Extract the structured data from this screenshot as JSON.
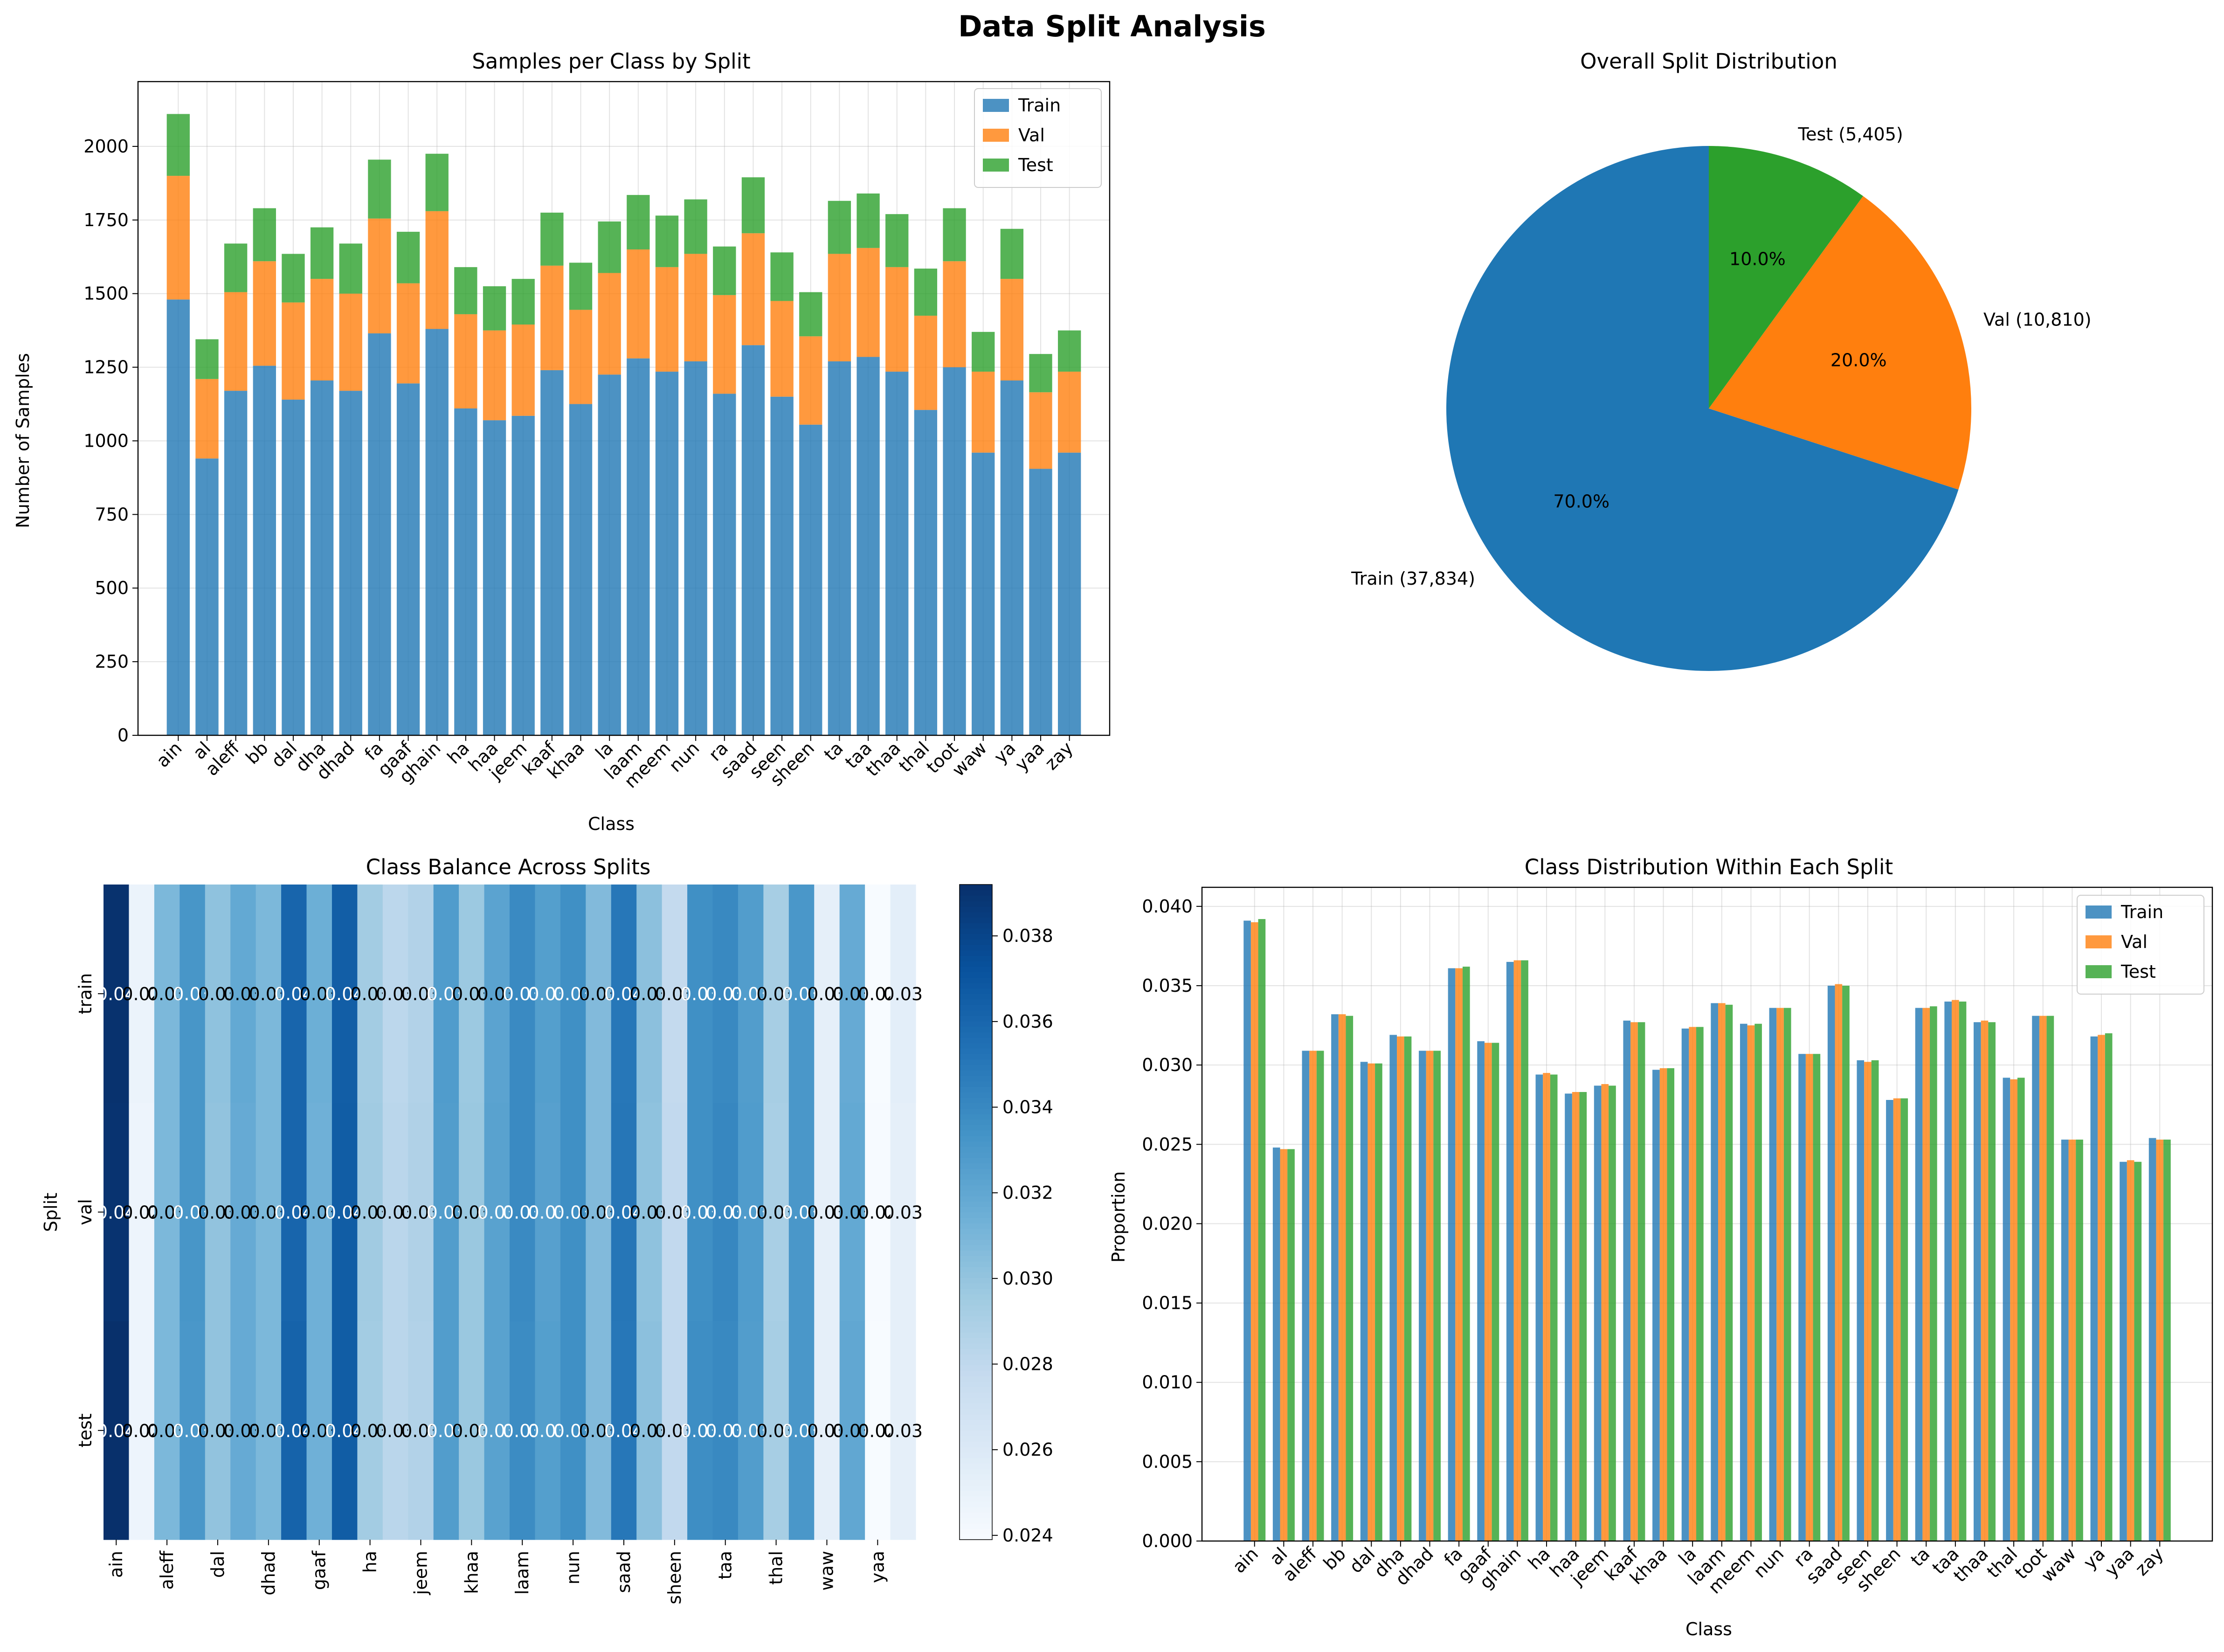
{
  "figure": {
    "suptitle": "Data Split Analysis"
  },
  "colors": {
    "train": "#1f77b4",
    "val": "#ff7f0e",
    "test": "#2ca02c",
    "grid": "#b0b0b0"
  },
  "classes": [
    "ain",
    "al",
    "aleff",
    "bb",
    "dal",
    "dha",
    "dhad",
    "fa",
    "gaaf",
    "ghain",
    "ha",
    "haa",
    "jeem",
    "kaaf",
    "khaa",
    "la",
    "laam",
    "meem",
    "nun",
    "ra",
    "saad",
    "seen",
    "sheen",
    "ta",
    "taa",
    "thaa",
    "thal",
    "toot",
    "waw",
    "ya",
    "yaa",
    "zay"
  ],
  "chart_data": [
    {
      "type": "bar",
      "stacked": true,
      "title": "Samples per Class by Split",
      "xlabel": "Class",
      "ylabel": "Number of Samples",
      "ylim": [
        0,
        2220
      ],
      "yticks": [
        0,
        250,
        500,
        750,
        1000,
        1250,
        1500,
        1750,
        2000
      ],
      "legend_position": "upper-right",
      "series": [
        {
          "name": "Train",
          "values": [
            1480,
            940,
            1170,
            1255,
            1140,
            1205,
            1170,
            1365,
            1195,
            1380,
            1110,
            1070,
            1085,
            1240,
            1125,
            1225,
            1280,
            1235,
            1270,
            1160,
            1325,
            1150,
            1055,
            1270,
            1285,
            1235,
            1105,
            1250,
            960,
            1205,
            905,
            960
          ]
        },
        {
          "name": "Val",
          "values": [
            420,
            270,
            335,
            355,
            330,
            345,
            330,
            390,
            340,
            400,
            320,
            305,
            310,
            355,
            320,
            345,
            370,
            355,
            365,
            335,
            380,
            325,
            300,
            365,
            370,
            355,
            320,
            360,
            275,
            345,
            260,
            275
          ]
        },
        {
          "name": "Test",
          "values": [
            210,
            135,
            165,
            180,
            165,
            175,
            170,
            200,
            175,
            195,
            160,
            150,
            155,
            180,
            160,
            175,
            185,
            175,
            185,
            165,
            190,
            165,
            150,
            180,
            185,
            180,
            160,
            180,
            135,
            170,
            130,
            140
          ]
        }
      ]
    },
    {
      "type": "pie",
      "title": "Overall Split Distribution",
      "slices": [
        {
          "name": "Train",
          "label": "Train (37,834)",
          "value": 37834,
          "pct_label": "70.0%"
        },
        {
          "name": "Val",
          "label": "Val (10,810)",
          "value": 10810,
          "pct_label": "20.0%"
        },
        {
          "name": "Test",
          "label": "Test (5,405)",
          "value": 5405,
          "pct_label": "10.0%"
        }
      ]
    },
    {
      "type": "heatmap",
      "title": "Class Balance Across Splits",
      "xlabel": "",
      "ylabel": "Split",
      "rows": [
        "train",
        "val",
        "test"
      ],
      "xtick_labels": [
        "ain",
        "aleff",
        "dal",
        "dhad",
        "gaaf",
        "ha",
        "jeem",
        "khaa",
        "laam",
        "nun",
        "saad",
        "sheen",
        "taa",
        "thal",
        "waw",
        "yaa"
      ],
      "colorbar_range": [
        0.0239,
        0.0392
      ],
      "colorbar_ticks": [
        0.024,
        0.026,
        0.028,
        0.03,
        0.032,
        0.034,
        0.036,
        0.038
      ],
      "cell_text": [
        "0.04",
        "0.02",
        "0.03",
        "0.03",
        "0.03",
        "0.03",
        "0.03",
        "0.04",
        "0.03",
        "0.04",
        "0.03",
        "0.03",
        "0.03",
        "0.03",
        "0.03",
        "0.03",
        "0.03",
        "0.03",
        "0.03",
        "0.03",
        "0.04",
        "0.03",
        "0.03",
        "0.03",
        "0.03",
        "0.03",
        "0.03",
        "0.03",
        "0.03",
        "0.03",
        "0.02",
        "0.03"
      ],
      "values": [
        [
          0.0391,
          0.0248,
          0.0309,
          0.0332,
          0.0302,
          0.0319,
          0.0309,
          0.0361,
          0.0315,
          0.0365,
          0.0294,
          0.0282,
          0.0287,
          0.0328,
          0.0297,
          0.0323,
          0.0339,
          0.0326,
          0.0336,
          0.0307,
          0.035,
          0.0303,
          0.0278,
          0.0336,
          0.034,
          0.0327,
          0.0292,
          0.0331,
          0.0253,
          0.0318,
          0.0239,
          0.0254
        ],
        [
          0.039,
          0.0247,
          0.0309,
          0.0332,
          0.0301,
          0.0318,
          0.0309,
          0.0361,
          0.0314,
          0.0366,
          0.0295,
          0.0283,
          0.0288,
          0.0327,
          0.0298,
          0.0324,
          0.0339,
          0.0325,
          0.0336,
          0.0307,
          0.0351,
          0.0302,
          0.0279,
          0.0336,
          0.0341,
          0.0328,
          0.0291,
          0.0331,
          0.0253,
          0.0319,
          0.024,
          0.0253
        ],
        [
          0.0392,
          0.0247,
          0.0309,
          0.0331,
          0.0301,
          0.0318,
          0.0309,
          0.0362,
          0.0314,
          0.0366,
          0.0294,
          0.0283,
          0.0287,
          0.0327,
          0.0298,
          0.0324,
          0.0338,
          0.0326,
          0.0336,
          0.0307,
          0.035,
          0.0303,
          0.0279,
          0.0337,
          0.034,
          0.0327,
          0.0292,
          0.0331,
          0.0253,
          0.032,
          0.0239,
          0.0253
        ]
      ]
    },
    {
      "type": "bar",
      "grouped": true,
      "title": "Class Distribution Within Each Split",
      "xlabel": "Class",
      "ylabel": "Proportion",
      "ylim": [
        0,
        0.0412
      ],
      "yticks": [
        0.0,
        0.005,
        0.01,
        0.015,
        0.02,
        0.025,
        0.03,
        0.035,
        0.04
      ],
      "legend_position": "upper-right",
      "series": [
        {
          "name": "Train",
          "values": [
            0.0391,
            0.0248,
            0.0309,
            0.0332,
            0.0302,
            0.0319,
            0.0309,
            0.0361,
            0.0315,
            0.0365,
            0.0294,
            0.0282,
            0.0287,
            0.0328,
            0.0297,
            0.0323,
            0.0339,
            0.0326,
            0.0336,
            0.0307,
            0.035,
            0.0303,
            0.0278,
            0.0336,
            0.034,
            0.0327,
            0.0292,
            0.0331,
            0.0253,
            0.0318,
            0.0239,
            0.0254
          ]
        },
        {
          "name": "Val",
          "values": [
            0.039,
            0.0247,
            0.0309,
            0.0332,
            0.0301,
            0.0318,
            0.0309,
            0.0361,
            0.0314,
            0.0366,
            0.0295,
            0.0283,
            0.0288,
            0.0327,
            0.0298,
            0.0324,
            0.0339,
            0.0325,
            0.0336,
            0.0307,
            0.0351,
            0.0302,
            0.0279,
            0.0336,
            0.0341,
            0.0328,
            0.0291,
            0.0331,
            0.0253,
            0.0319,
            0.024,
            0.0253
          ]
        },
        {
          "name": "Test",
          "values": [
            0.0392,
            0.0247,
            0.0309,
            0.0331,
            0.0301,
            0.0318,
            0.0309,
            0.0362,
            0.0314,
            0.0366,
            0.0294,
            0.0283,
            0.0287,
            0.0327,
            0.0298,
            0.0324,
            0.0338,
            0.0326,
            0.0336,
            0.0307,
            0.035,
            0.0303,
            0.0279,
            0.0337,
            0.034,
            0.0327,
            0.0292,
            0.0331,
            0.0253,
            0.032,
            0.0239,
            0.0253
          ]
        }
      ]
    }
  ]
}
